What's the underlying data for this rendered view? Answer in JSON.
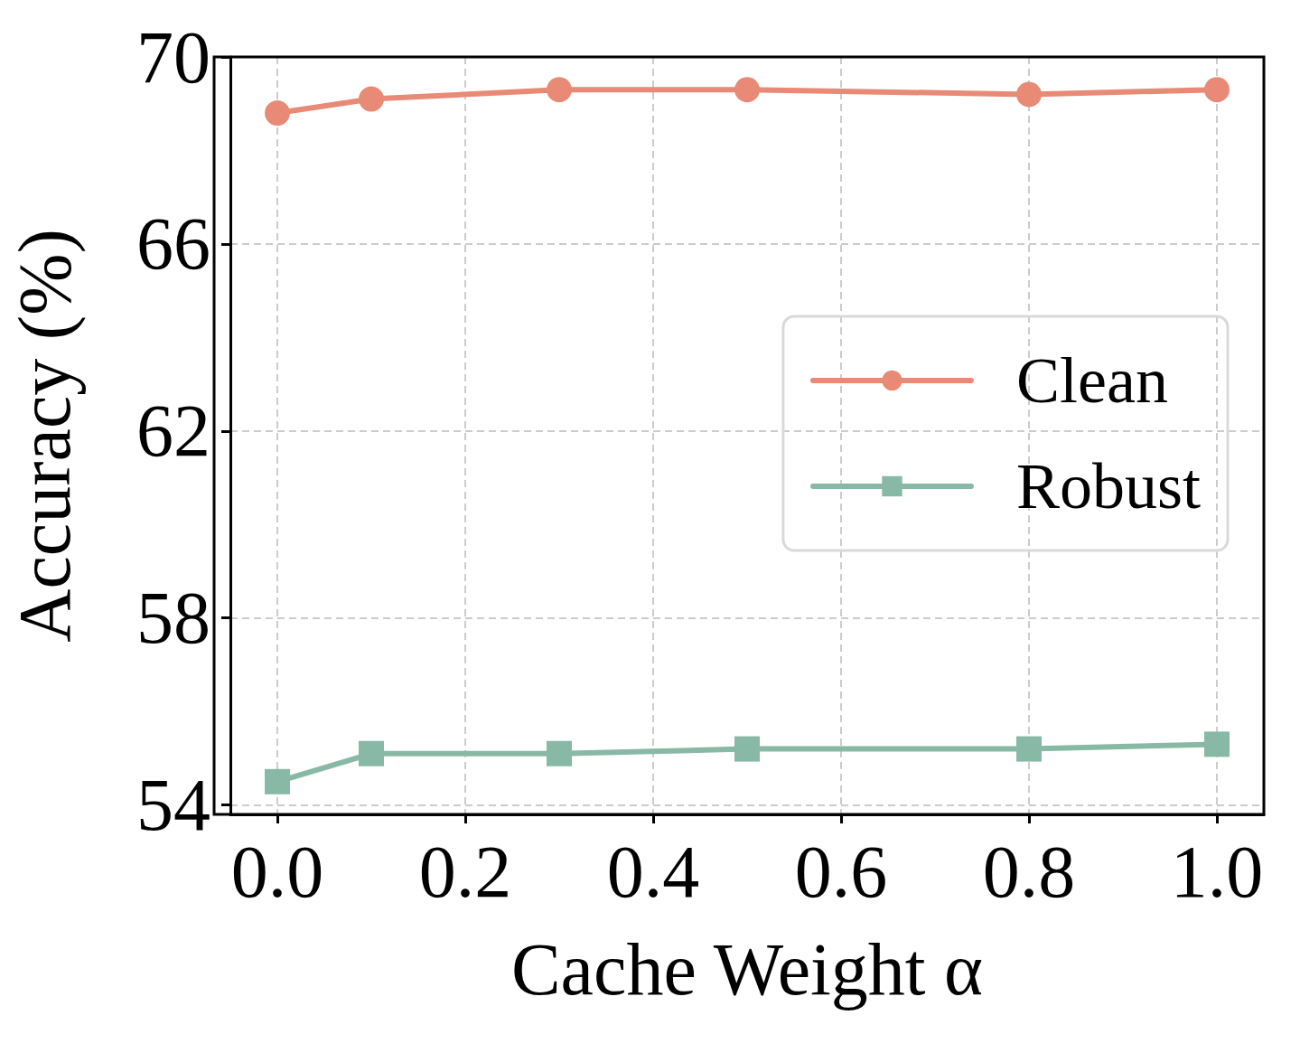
{
  "chart_data": {
    "type": "line",
    "xlabel": "Cache Weight α",
    "ylabel": "Accuracy (%)",
    "x": [
      0.0,
      0.1,
      0.3,
      0.5,
      0.8,
      1.0
    ],
    "series": [
      {
        "name": "Clean",
        "color": "#e88a75",
        "marker": "circle",
        "values": [
          68.8,
          69.1,
          69.3,
          69.3,
          69.2,
          69.3
        ]
      },
      {
        "name": "Robust",
        "color": "#88b9a6",
        "marker": "square",
        "values": [
          54.5,
          55.1,
          55.1,
          55.2,
          55.2,
          55.3
        ]
      }
    ],
    "xlim": [
      -0.05,
      1.05
    ],
    "xticks": [
      {
        "value": 0,
        "label": "0.0"
      },
      0.2,
      0.4,
      0.6,
      0.8,
      {
        "value": 1,
        "label": "1.0"
      }
    ],
    "ylim": [
      53.8,
      70
    ],
    "yticks": [
      54,
      58,
      62,
      66,
      70
    ],
    "grid": true,
    "legend": "right",
    "line_style": "solid"
  }
}
